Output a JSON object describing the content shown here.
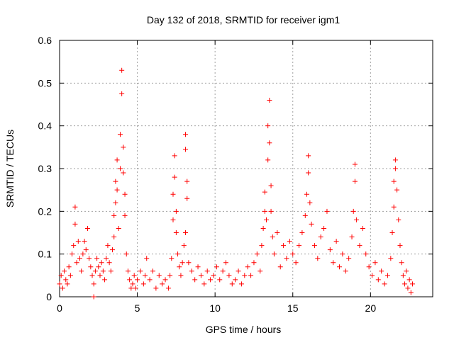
{
  "chart_data": {
    "type": "scatter",
    "title": "Day 132 of 2018, SRMTID for receiver igm1",
    "xlabel": "GPS time / hours",
    "ylabel": "SRMTID / TECUs",
    "xlim": [
      0,
      24
    ],
    "ylim": [
      0,
      0.6
    ],
    "x_ticks": [
      0,
      5,
      10,
      15,
      20
    ],
    "y_ticks": [
      0,
      0.1,
      0.2,
      0.3,
      0.4,
      0.5,
      0.6
    ],
    "x_tick_labels": [
      "0",
      "5",
      "10",
      "15",
      "20"
    ],
    "y_tick_labels": [
      "0",
      "0.1",
      "0.2",
      "0.3",
      "0.4",
      "0.5",
      "0.6"
    ],
    "grid": true,
    "marker": "+",
    "series": [
      {
        "name": "SRMTID",
        "color": "#ff0000",
        "points": [
          [
            0.0,
            0.03
          ],
          [
            0.1,
            0.05
          ],
          [
            0.2,
            0.02
          ],
          [
            0.3,
            0.06
          ],
          [
            0.4,
            0.04
          ],
          [
            0.5,
            0.03
          ],
          [
            0.6,
            0.07
          ],
          [
            0.7,
            0.05
          ],
          [
            0.8,
            0.1
          ],
          [
            0.9,
            0.12
          ],
          [
            1.0,
            0.21
          ],
          [
            1.0,
            0.17
          ],
          [
            1.1,
            0.08
          ],
          [
            1.2,
            0.13
          ],
          [
            1.3,
            0.09
          ],
          [
            1.4,
            0.06
          ],
          [
            1.5,
            0.1
          ],
          [
            1.6,
            0.13
          ],
          [
            1.7,
            0.11
          ],
          [
            1.8,
            0.16
          ],
          [
            1.9,
            0.09
          ],
          [
            2.0,
            0.07
          ],
          [
            2.1,
            0.05
          ],
          [
            2.2,
            0.03
          ],
          [
            2.2,
            0.0
          ],
          [
            2.3,
            0.06
          ],
          [
            2.4,
            0.09
          ],
          [
            2.5,
            0.07
          ],
          [
            2.6,
            0.05
          ],
          [
            2.7,
            0.08
          ],
          [
            2.8,
            0.06
          ],
          [
            2.9,
            0.04
          ],
          [
            3.0,
            0.09
          ],
          [
            3.1,
            0.12
          ],
          [
            3.2,
            0.08
          ],
          [
            3.3,
            0.06
          ],
          [
            3.4,
            0.11
          ],
          [
            3.5,
            0.14
          ],
          [
            3.5,
            0.19
          ],
          [
            3.6,
            0.22
          ],
          [
            3.6,
            0.27
          ],
          [
            3.7,
            0.32
          ],
          [
            3.7,
            0.25
          ],
          [
            3.8,
            0.16
          ],
          [
            3.9,
            0.38
          ],
          [
            3.9,
            0.3
          ],
          [
            4.0,
            0.53
          ],
          [
            4.0,
            0.475
          ],
          [
            4.1,
            0.35
          ],
          [
            4.1,
            0.29
          ],
          [
            4.2,
            0.24
          ],
          [
            4.2,
            0.19
          ],
          [
            4.3,
            0.1
          ],
          [
            4.4,
            0.06
          ],
          [
            4.5,
            0.04
          ],
          [
            4.6,
            0.02
          ],
          [
            4.7,
            0.03
          ],
          [
            4.8,
            0.05
          ],
          [
            4.9,
            0.02
          ],
          [
            5.0,
            0.04
          ],
          [
            5.2,
            0.06
          ],
          [
            5.4,
            0.03
          ],
          [
            5.5,
            0.05
          ],
          [
            5.6,
            0.09
          ],
          [
            5.8,
            0.04
          ],
          [
            6.0,
            0.06
          ],
          [
            6.2,
            0.02
          ],
          [
            6.4,
            0.05
          ],
          [
            6.6,
            0.03
          ],
          [
            6.8,
            0.04
          ],
          [
            7.0,
            0.02
          ],
          [
            7.1,
            0.05
          ],
          [
            7.2,
            0.09
          ],
          [
            7.3,
            0.18
          ],
          [
            7.3,
            0.24
          ],
          [
            7.4,
            0.33
          ],
          [
            7.4,
            0.28
          ],
          [
            7.5,
            0.2
          ],
          [
            7.5,
            0.15
          ],
          [
            7.6,
            0.1
          ],
          [
            7.7,
            0.07
          ],
          [
            7.8,
            0.05
          ],
          [
            7.9,
            0.08
          ],
          [
            8.0,
            0.12
          ],
          [
            8.1,
            0.15
          ],
          [
            8.1,
            0.38
          ],
          [
            8.1,
            0.345
          ],
          [
            8.2,
            0.27
          ],
          [
            8.2,
            0.23
          ],
          [
            8.3,
            0.08
          ],
          [
            8.5,
            0.06
          ],
          [
            8.7,
            0.04
          ],
          [
            8.9,
            0.07
          ],
          [
            9.1,
            0.05
          ],
          [
            9.3,
            0.03
          ],
          [
            9.5,
            0.06
          ],
          [
            9.7,
            0.04
          ],
          [
            9.9,
            0.05
          ],
          [
            10.1,
            0.07
          ],
          [
            10.3,
            0.04
          ],
          [
            10.5,
            0.06
          ],
          [
            10.7,
            0.08
          ],
          [
            10.9,
            0.05
          ],
          [
            11.1,
            0.03
          ],
          [
            11.3,
            0.04
          ],
          [
            11.5,
            0.06
          ],
          [
            11.7,
            0.03
          ],
          [
            11.9,
            0.05
          ],
          [
            12.1,
            0.07
          ],
          [
            12.3,
            0.05
          ],
          [
            12.5,
            0.08
          ],
          [
            12.7,
            0.1
          ],
          [
            12.9,
            0.06
          ],
          [
            13.0,
            0.12
          ],
          [
            13.1,
            0.16
          ],
          [
            13.2,
            0.2
          ],
          [
            13.2,
            0.245
          ],
          [
            13.3,
            0.18
          ],
          [
            13.4,
            0.32
          ],
          [
            13.4,
            0.4
          ],
          [
            13.5,
            0.46
          ],
          [
            13.5,
            0.36
          ],
          [
            13.6,
            0.26
          ],
          [
            13.6,
            0.2
          ],
          [
            13.7,
            0.14
          ],
          [
            13.8,
            0.1
          ],
          [
            14.0,
            0.15
          ],
          [
            14.2,
            0.07
          ],
          [
            14.4,
            0.12
          ],
          [
            14.6,
            0.09
          ],
          [
            14.8,
            0.13
          ],
          [
            15.0,
            0.1
          ],
          [
            15.2,
            0.08
          ],
          [
            15.4,
            0.12
          ],
          [
            15.6,
            0.15
          ],
          [
            15.8,
            0.19
          ],
          [
            15.9,
            0.24
          ],
          [
            16.0,
            0.29
          ],
          [
            16.0,
            0.33
          ],
          [
            16.1,
            0.22
          ],
          [
            16.2,
            0.17
          ],
          [
            16.4,
            0.12
          ],
          [
            16.6,
            0.09
          ],
          [
            16.8,
            0.14
          ],
          [
            17.0,
            0.16
          ],
          [
            17.2,
            0.2
          ],
          [
            17.4,
            0.11
          ],
          [
            17.6,
            0.08
          ],
          [
            17.8,
            0.13
          ],
          [
            18.0,
            0.07
          ],
          [
            18.2,
            0.1
          ],
          [
            18.4,
            0.06
          ],
          [
            18.6,
            0.09
          ],
          [
            18.8,
            0.14
          ],
          [
            18.9,
            0.2
          ],
          [
            19.0,
            0.27
          ],
          [
            19.0,
            0.31
          ],
          [
            19.1,
            0.18
          ],
          [
            19.3,
            0.12
          ],
          [
            19.5,
            0.16
          ],
          [
            19.7,
            0.1
          ],
          [
            19.9,
            0.07
          ],
          [
            20.1,
            0.05
          ],
          [
            20.3,
            0.08
          ],
          [
            20.5,
            0.04
          ],
          [
            20.7,
            0.06
          ],
          [
            20.9,
            0.03
          ],
          [
            21.1,
            0.05
          ],
          [
            21.3,
            0.09
          ],
          [
            21.4,
            0.15
          ],
          [
            21.5,
            0.21
          ],
          [
            21.5,
            0.27
          ],
          [
            21.6,
            0.32
          ],
          [
            21.6,
            0.3
          ],
          [
            21.7,
            0.25
          ],
          [
            21.8,
            0.18
          ],
          [
            21.9,
            0.12
          ],
          [
            22.0,
            0.08
          ],
          [
            22.1,
            0.05
          ],
          [
            22.2,
            0.03
          ],
          [
            22.3,
            0.06
          ],
          [
            22.4,
            0.02
          ],
          [
            22.5,
            0.04
          ],
          [
            22.6,
            0.01
          ],
          [
            22.7,
            0.03
          ]
        ]
      }
    ]
  }
}
